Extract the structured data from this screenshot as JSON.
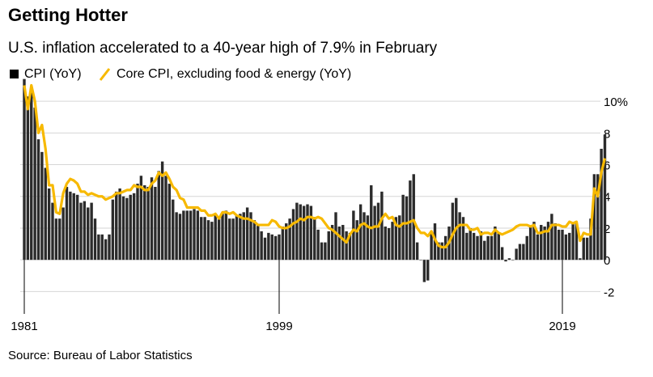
{
  "chart_data": {
    "type": "bar_line",
    "title": "Getting Hotter",
    "subtitle": "U.S. inflation accelerated to a 40-year high of 7.9% in February",
    "source": "Source: Bureau of Labor Statistics",
    "categories": [
      "1981",
      null,
      null,
      null,
      null,
      null,
      null,
      null,
      null,
      null,
      null,
      null,
      null,
      null,
      null,
      null,
      null,
      null,
      null,
      null,
      null,
      null,
      null,
      null,
      null,
      null,
      null,
      null,
      null,
      null,
      null,
      null,
      null,
      null,
      null,
      null,
      null,
      null,
      null,
      null,
      null,
      null,
      null,
      null,
      null,
      null,
      null,
      null,
      null,
      null,
      null,
      null,
      null,
      null,
      null,
      null,
      null,
      null,
      null,
      null,
      null,
      null,
      null,
      null,
      null,
      null,
      null,
      null,
      null,
      null,
      null,
      null,
      "1999",
      null,
      null,
      null,
      null,
      null,
      null,
      null,
      null,
      null,
      null,
      null,
      null,
      null,
      null,
      null,
      null,
      null,
      null,
      null,
      null,
      null,
      null,
      null,
      null,
      null,
      null,
      null,
      null,
      null,
      null,
      null,
      null,
      null,
      null,
      null,
      null,
      null,
      null,
      null,
      null,
      null,
      null,
      null,
      null,
      null,
      null,
      null,
      null,
      null,
      null,
      null,
      null,
      null,
      null,
      null,
      null,
      null,
      null,
      null,
      null,
      null,
      null,
      null,
      null,
      null,
      null,
      null,
      null,
      null,
      null,
      null,
      null,
      null,
      null,
      null,
      null,
      null,
      null,
      null,
      "2019",
      null,
      null,
      null,
      null,
      null,
      null,
      null,
      null,
      null,
      null,
      null,
      null
    ],
    "series": [
      {
        "name": "CPI (YoY)",
        "color": "#2b2b2b",
        "values": [
          11.4,
          10.3,
          10.9,
          9.6,
          7.6,
          6.8,
          5.8,
          4.5,
          3.6,
          2.6,
          2.6,
          3.3,
          4.6,
          4.3,
          4.2,
          4.1,
          3.6,
          3.7,
          3.3,
          3.6,
          2.6,
          1.6,
          1.6,
          1.3,
          1.6,
          3.8,
          4.3,
          4.5,
          4.0,
          3.9,
          4.1,
          4.2,
          4.8,
          5.3,
          4.7,
          4.6,
          5.2,
          4.6,
          5.6,
          6.2,
          5.3,
          4.8,
          3.8,
          3.0,
          2.9,
          3.1,
          3.1,
          3.1,
          3.2,
          3.1,
          2.7,
          2.7,
          2.5,
          2.4,
          2.9,
          2.6,
          2.9,
          3.1,
          2.6,
          2.6,
          2.8,
          2.9,
          3.0,
          3.3,
          3.0,
          2.5,
          2.2,
          1.8,
          1.4,
          1.7,
          1.6,
          1.5,
          1.6,
          2.1,
          2.3,
          2.6,
          3.2,
          3.6,
          3.5,
          3.4,
          3.5,
          3.4,
          2.7,
          1.9,
          1.1,
          1.1,
          1.8,
          2.2,
          3.0,
          2.1,
          2.2,
          1.8,
          1.7,
          3.1,
          2.5,
          3.5,
          3.0,
          2.8,
          4.7,
          3.4,
          3.6,
          4.3,
          2.1,
          2.0,
          2.4,
          2.7,
          2.8,
          4.1,
          4.0,
          5.0,
          5.4,
          1.1,
          0.0,
          -1.4,
          -1.3,
          1.8,
          2.3,
          1.1,
          1.1,
          1.5,
          2.1,
          3.6,
          3.9,
          3.0,
          2.7,
          1.7,
          2.0,
          1.7,
          1.5,
          1.8,
          1.2,
          1.5,
          1.5,
          2.1,
          1.7,
          0.8,
          -0.1,
          0.1,
          0.0,
          0.7,
          1.0,
          1.0,
          1.5,
          2.1,
          2.4,
          1.6,
          2.2,
          2.1,
          2.4,
          2.9,
          2.3,
          1.9,
          1.9,
          1.6,
          1.7,
          2.3,
          2.3,
          0.1,
          1.4,
          1.4,
          2.6,
          5.4,
          5.4,
          7.0,
          7.9
        ]
      },
      {
        "name": "Core CPI, excluding food & energy (YoY)",
        "color": "#f7b900",
        "values": [
          11.0,
          9.5,
          11.0,
          10.0,
          8.0,
          8.5,
          7.0,
          4.7,
          4.7,
          3.0,
          2.9,
          4.2,
          4.8,
          5.1,
          5.0,
          4.8,
          4.3,
          4.3,
          4.1,
          4.2,
          4.1,
          4.0,
          4.0,
          3.8,
          3.9,
          4.0,
          4.2,
          4.2,
          4.3,
          4.4,
          4.4,
          4.7,
          4.6,
          4.6,
          4.4,
          4.4,
          4.8,
          5.0,
          5.5,
          5.3,
          5.5,
          5.1,
          4.6,
          4.4,
          3.9,
          3.8,
          3.3,
          3.3,
          3.3,
          3.3,
          3.1,
          3.1,
          2.8,
          2.8,
          2.9,
          2.6,
          3.0,
          3.0,
          2.9,
          3.0,
          2.8,
          2.7,
          2.6,
          2.6,
          2.5,
          2.4,
          2.2,
          2.2,
          2.2,
          2.2,
          2.5,
          2.4,
          2.1,
          2.0,
          2.0,
          2.1,
          2.3,
          2.4,
          2.6,
          2.5,
          2.7,
          2.7,
          2.6,
          2.7,
          2.6,
          2.3,
          2.0,
          1.9,
          1.7,
          1.5,
          1.3,
          1.1,
          1.6,
          1.9,
          1.8,
          2.2,
          2.3,
          2.1,
          2.0,
          2.1,
          2.1,
          2.6,
          2.9,
          2.6,
          2.7,
          2.2,
          2.1,
          2.3,
          2.3,
          2.4,
          2.5,
          2.0,
          1.7,
          1.7,
          1.5,
          1.8,
          1.3,
          0.9,
          0.8,
          0.8,
          1.1,
          1.6,
          2.0,
          2.2,
          2.2,
          2.2,
          1.9,
          1.9,
          2.0,
          1.6,
          1.7,
          1.7,
          1.6,
          1.9,
          1.7,
          1.6,
          1.7,
          1.8,
          1.9,
          2.1,
          2.2,
          2.2,
          2.2,
          2.1,
          2.2,
          1.7,
          1.7,
          1.8,
          1.8,
          2.2,
          2.2,
          2.2,
          2.1,
          2.1,
          2.4,
          2.3,
          2.4,
          1.2,
          1.7,
          1.6,
          1.6,
          4.5,
          4.0,
          5.5,
          6.4
        ]
      }
    ],
    "ylim": [
      -3,
      11
    ],
    "yticks": [
      -2,
      0,
      2,
      4,
      6,
      8,
      {
        "value": 10,
        "label": "10%"
      }
    ],
    "grid": true
  }
}
